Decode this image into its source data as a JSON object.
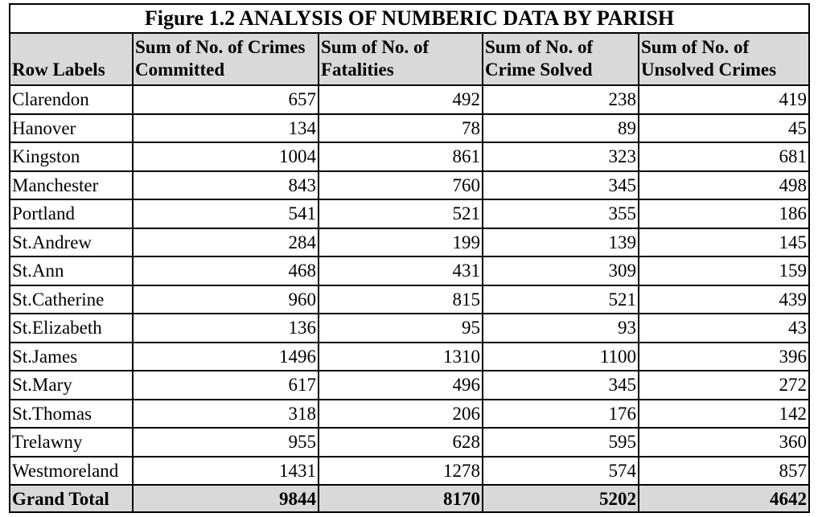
{
  "title": "Figure 1.2 ANALYSIS OF NUMBERIC DATA BY PARISH",
  "headers": [
    "Row Labels",
    "Sum of No. of Crimes Committed",
    "Sum of No. of Fatalities",
    "Sum of No. of Crime Solved",
    "Sum of No. of Unsolved Crimes"
  ],
  "rows": [
    {
      "label": "Clarendon",
      "committed": "657",
      "fatalities": "492",
      "solved": "238",
      "unsolved": "419"
    },
    {
      "label": "Hanover",
      "committed": "134",
      "fatalities": "78",
      "solved": "89",
      "unsolved": "45"
    },
    {
      "label": "Kingston",
      "committed": "1004",
      "fatalities": "861",
      "solved": "323",
      "unsolved": "681"
    },
    {
      "label": "Manchester",
      "committed": "843",
      "fatalities": "760",
      "solved": "345",
      "unsolved": "498"
    },
    {
      "label": "Portland",
      "committed": "541",
      "fatalities": "521",
      "solved": "355",
      "unsolved": "186"
    },
    {
      "label": "St.Andrew",
      "committed": "284",
      "fatalities": "199",
      "solved": "139",
      "unsolved": "145"
    },
    {
      "label": "St.Ann",
      "committed": "468",
      "fatalities": "431",
      "solved": "309",
      "unsolved": "159"
    },
    {
      "label": "St.Catherine",
      "committed": "960",
      "fatalities": "815",
      "solved": "521",
      "unsolved": "439"
    },
    {
      "label": "St.Elizabeth",
      "committed": "136",
      "fatalities": "95",
      "solved": "93",
      "unsolved": "43"
    },
    {
      "label": "St.James",
      "committed": "1496",
      "fatalities": "1310",
      "solved": "1100",
      "unsolved": "396"
    },
    {
      "label": "St.Mary",
      "committed": "617",
      "fatalities": "496",
      "solved": "345",
      "unsolved": "272"
    },
    {
      "label": "St.Thomas",
      "committed": "318",
      "fatalities": "206",
      "solved": "176",
      "unsolved": "142"
    },
    {
      "label": "Trelawny",
      "committed": "955",
      "fatalities": "628",
      "solved": "595",
      "unsolved": "360"
    },
    {
      "label": "Westmoreland",
      "committed": "1431",
      "fatalities": "1278",
      "solved": "574",
      "unsolved": "857"
    }
  ],
  "total": {
    "label": "Grand Total",
    "committed": "9844",
    "fatalities": "8170",
    "solved": "5202",
    "unsolved": "4642"
  },
  "colors": {
    "header_fill": "#d9d9d9",
    "border": "#000000"
  }
}
